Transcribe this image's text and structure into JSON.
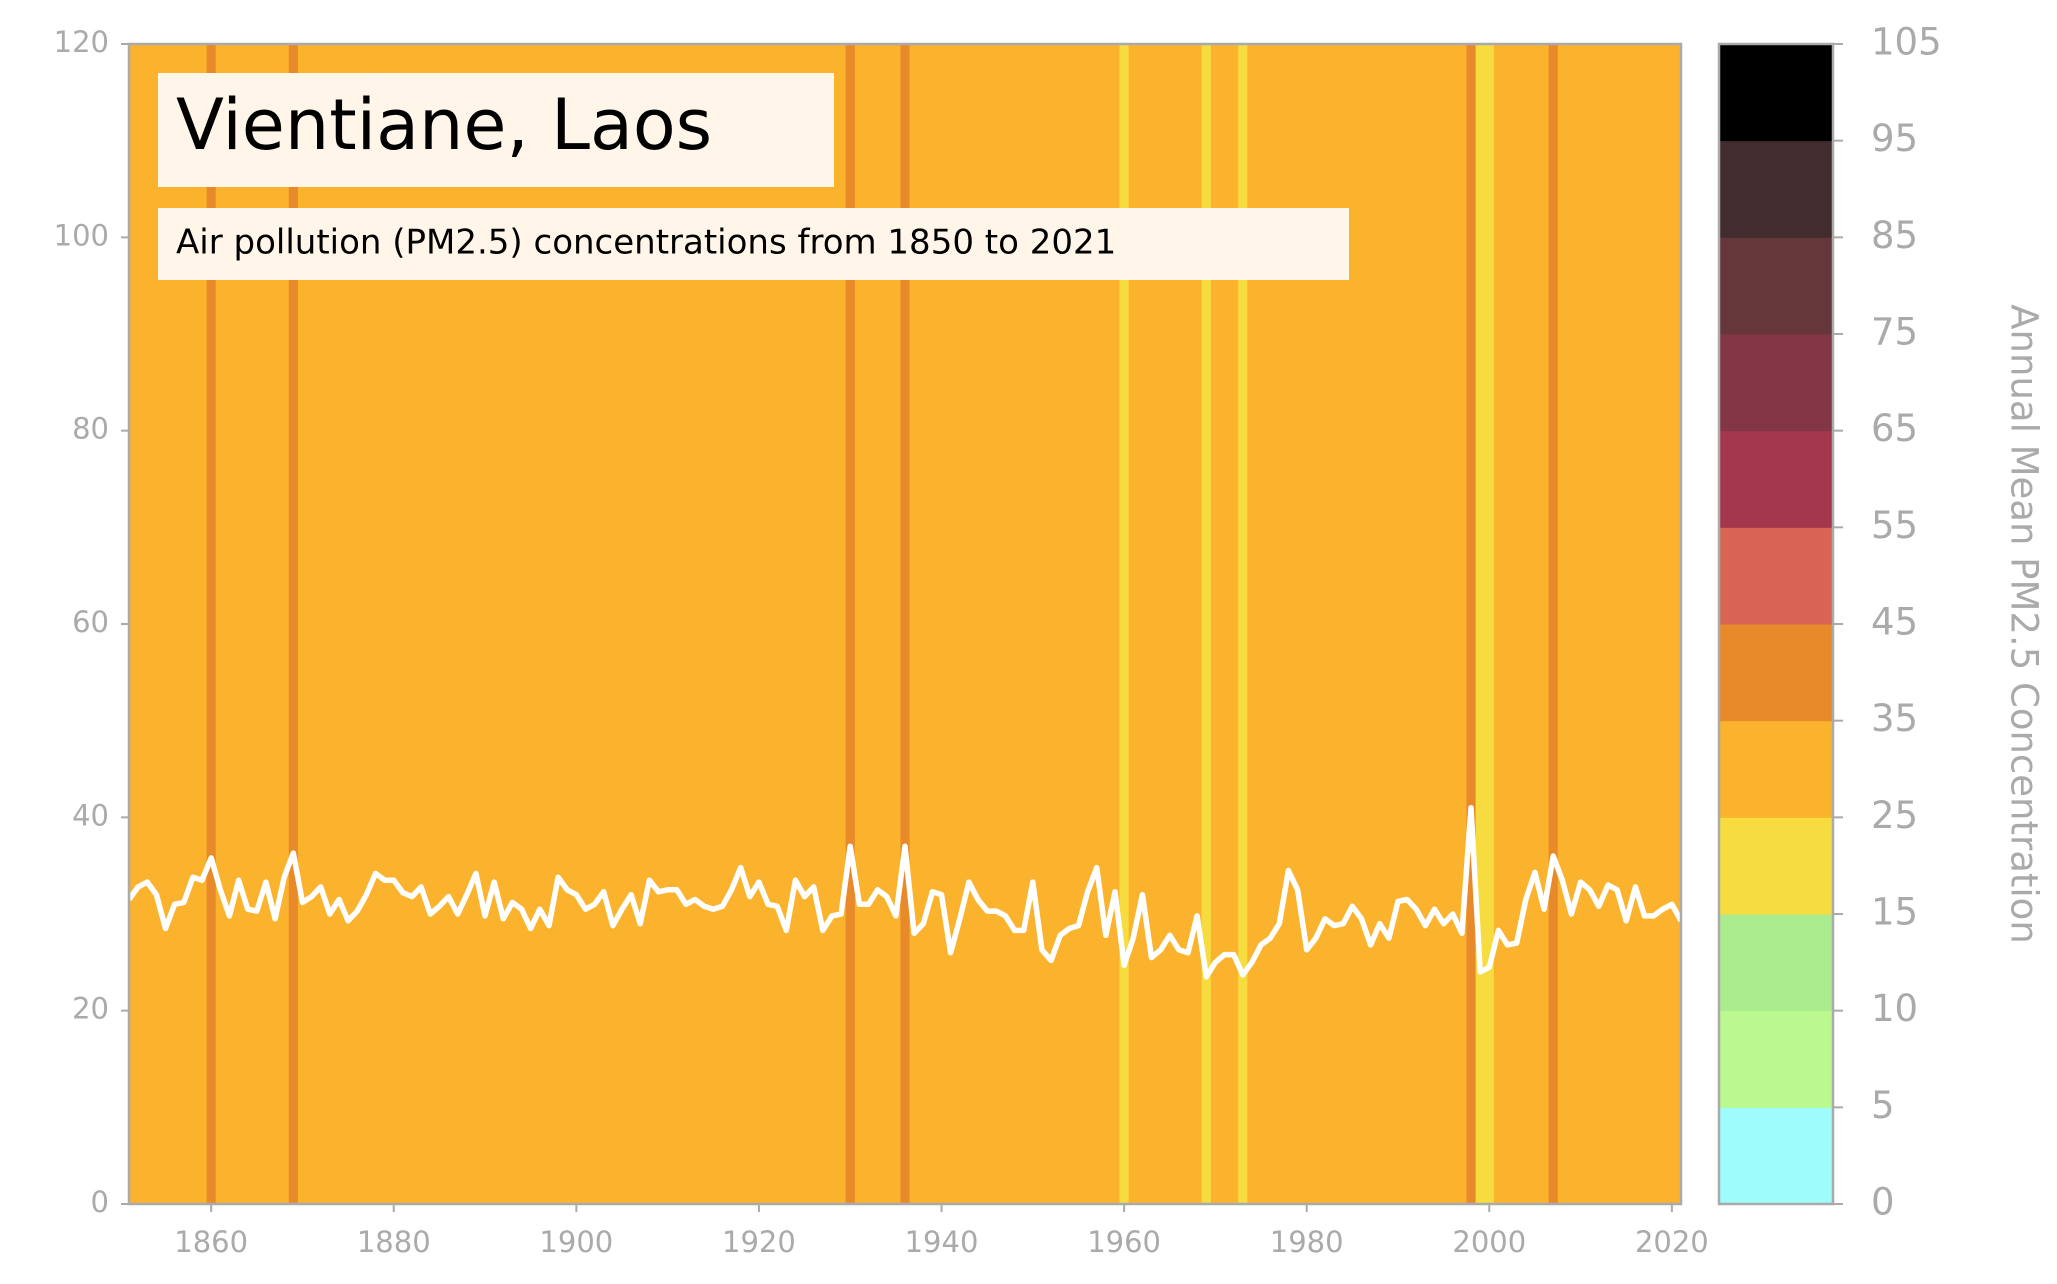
{
  "chart_data": {
    "type": "warming-stripes-line",
    "title": "Vientiane, Laos",
    "subtitle": "Air pollution (PM2.5) concentrations from 1850 to 2021",
    "colorbar_label": "Annual Mean PM2.5 Concentration",
    "x": [
      1851,
      1852,
      1853,
      1854,
      1855,
      1856,
      1857,
      1858,
      1859,
      1860,
      1861,
      1862,
      1863,
      1864,
      1865,
      1866,
      1867,
      1868,
      1869,
      1870,
      1871,
      1872,
      1873,
      1874,
      1875,
      1876,
      1877,
      1878,
      1879,
      1880,
      1881,
      1882,
      1883,
      1884,
      1885,
      1886,
      1887,
      1888,
      1889,
      1890,
      1891,
      1892,
      1893,
      1894,
      1895,
      1896,
      1897,
      1898,
      1899,
      1900,
      1901,
      1902,
      1903,
      1904,
      1905,
      1906,
      1907,
      1908,
      1909,
      1910,
      1911,
      1912,
      1913,
      1914,
      1915,
      1916,
      1917,
      1918,
      1919,
      1920,
      1921,
      1922,
      1923,
      1924,
      1925,
      1926,
      1927,
      1928,
      1929,
      1930,
      1931,
      1932,
      1933,
      1934,
      1935,
      1936,
      1937,
      1938,
      1939,
      1940,
      1941,
      1942,
      1943,
      1944,
      1945,
      1946,
      1947,
      1948,
      1949,
      1950,
      1951,
      1952,
      1953,
      1954,
      1955,
      1956,
      1957,
      1958,
      1959,
      1960,
      1961,
      1962,
      1963,
      1964,
      1965,
      1966,
      1967,
      1968,
      1969,
      1970,
      1971,
      1972,
      1973,
      1974,
      1975,
      1976,
      1977,
      1978,
      1979,
      1980,
      1981,
      1982,
      1983,
      1984,
      1985,
      1986,
      1987,
      1988,
      1989,
      1990,
      1991,
      1992,
      1993,
      1994,
      1995,
      1996,
      1997,
      1998,
      1999,
      2000,
      2001,
      2002,
      2003,
      2004,
      2005,
      2006,
      2007,
      2008,
      2009,
      2010,
      2011,
      2012,
      2013,
      2014,
      2015,
      2016,
      2017,
      2018,
      2019,
      2020,
      2021
    ],
    "values": [
      31.5,
      32.8,
      33.3,
      32,
      28.5,
      31,
      31.2,
      33.8,
      33.5,
      35.8,
      32.5,
      29.8,
      33.5,
      30.5,
      30.3,
      33.3,
      29.5,
      33.8,
      36.3,
      31.2,
      31.8,
      32.8,
      30,
      31.5,
      29.3,
      30.3,
      32,
      34.2,
      33.5,
      33.5,
      32.2,
      31.8,
      32.8,
      30,
      30.8,
      31.8,
      30,
      32,
      34.2,
      29.8,
      33.3,
      29.5,
      31.2,
      30.5,
      28.5,
      30.5,
      28.8,
      33.8,
      32.5,
      32,
      30.5,
      31,
      32.3,
      28.8,
      30.5,
      32,
      29,
      33.5,
      32.3,
      32.5,
      32.5,
      31,
      31.5,
      30.8,
      30.5,
      30.8,
      32.5,
      34.8,
      31.8,
      33.3,
      31,
      30.8,
      28.3,
      33.5,
      31.8,
      32.8,
      28.3,
      29.8,
      30,
      37,
      31,
      31,
      32.5,
      31.8,
      29.8,
      37,
      28,
      29,
      32.3,
      32,
      26,
      29.5,
      33.3,
      31.5,
      30.3,
      30.3,
      29.8,
      28.3,
      28.3,
      33.3,
      26.3,
      25.2,
      27.8,
      28.5,
      28.8,
      32.3,
      34.8,
      27.8,
      32.3,
      24.7,
      27.5,
      32,
      25.5,
      26.3,
      27.8,
      26.3,
      26,
      29.8,
      23.5,
      25,
      25.8,
      25.8,
      23.7,
      25,
      26.8,
      27.5,
      29,
      34.5,
      32.5,
      26.3,
      27.5,
      29.5,
      28.8,
      29,
      30.8,
      29.5,
      26.8,
      29,
      27.5,
      31.3,
      31.5,
      30.5,
      28.8,
      30.5,
      29,
      30,
      28,
      41,
      24,
      24.5,
      28.3,
      26.8,
      27,
      31.5,
      34.3,
      30.5,
      36,
      33.5,
      30,
      33.3,
      32.5,
      30.8,
      33,
      32.5,
      29.3,
      32.8,
      29.8,
      29.8,
      30.5,
      31,
      29.3
    ],
    "line_color": "#ffffff",
    "xlim": [
      1851,
      2021
    ],
    "ylim": [
      0,
      120
    ],
    "xticks": [
      1860,
      1880,
      1900,
      1920,
      1940,
      1960,
      1980,
      2000,
      2020
    ],
    "yticks": [
      0,
      20,
      40,
      60,
      80,
      100,
      120
    ],
    "colorbar": {
      "ticks": [
        0,
        5,
        10,
        15,
        25,
        35,
        45,
        55,
        65,
        75,
        85,
        95,
        105
      ],
      "colors": [
        "#9ffcfd",
        "#bbf98f",
        "#aaec8e",
        "#f6dc3f",
        "#fbb32e",
        "#e8892a",
        "#d96454",
        "#a3374e",
        "#833645",
        "#66373a",
        "#432c2e",
        "#000000"
      ]
    }
  }
}
